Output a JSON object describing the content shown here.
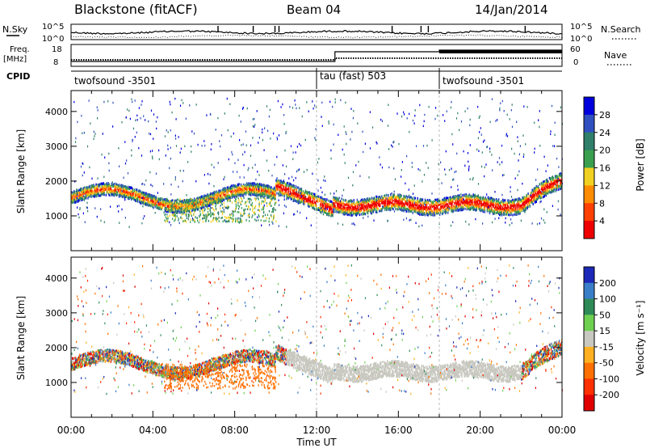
{
  "header": {
    "station": "Blackstone (fitACF)",
    "beam": "Beam 04",
    "date": "14/Jan/2014"
  },
  "noise_panel": {
    "left_label": "N.Sky",
    "right_label": "N.Search",
    "left_ticks": [
      "10^5",
      "10^0"
    ],
    "right_ticks": [
      "10^5",
      "10^0"
    ]
  },
  "freq_panel": {
    "left_label_1": "Freq.",
    "left_label_2": "[MHz]",
    "right_label": "Nave",
    "left_ticks": [
      "18",
      "8"
    ],
    "right_ticks": [
      "60",
      "0"
    ]
  },
  "cpid_panel": {
    "label": "CPID",
    "segments": [
      {
        "name": "twofsound -3501",
        "start_hour": 0
      },
      {
        "name": "tau (fast) 503",
        "start_hour": 12
      },
      {
        "name": "twofsound -3501",
        "start_hour": 18
      }
    ]
  },
  "chart_data": [
    {
      "type": "heatmap",
      "ylabel": "Slant Range [km]",
      "ylim": [
        0,
        4600
      ],
      "yticks": [
        1000,
        2000,
        3000,
        4000
      ],
      "xlim": [
        0,
        24
      ],
      "colorbar": {
        "label": "Power [dB]",
        "ticks": [
          "4",
          "8",
          "12",
          "16",
          "20",
          "24",
          "28"
        ],
        "colors": [
          "#0000dd",
          "#3050c0",
          "#2f7f6a",
          "#3aa050",
          "#f0d020",
          "#ff8c00",
          "#ff4000",
          "#ee0000"
        ]
      }
    },
    {
      "type": "heatmap",
      "ylabel": "Slant Range [km]",
      "ylim": [
        0,
        4600
      ],
      "yticks": [
        1000,
        2000,
        3000,
        4000
      ],
      "xlim": [
        0,
        24
      ],
      "xlabel": "Time UT",
      "xticks": [
        "00:00",
        "04:00",
        "08:00",
        "12:00",
        "16:00",
        "20:00",
        "00:00"
      ],
      "colorbar": {
        "label": "Velocity [m s⁻¹]",
        "ticks": [
          "200",
          "100",
          "50",
          "15",
          "-15",
          "-50",
          "-100",
          "-200"
        ],
        "colors": [
          "#1c28b8",
          "#3a7ec8",
          "#2e8b57",
          "#6fd050",
          "#c8c8c0",
          "#ffb020",
          "#ff7000",
          "#ff3000",
          "#e00000"
        ]
      }
    }
  ]
}
